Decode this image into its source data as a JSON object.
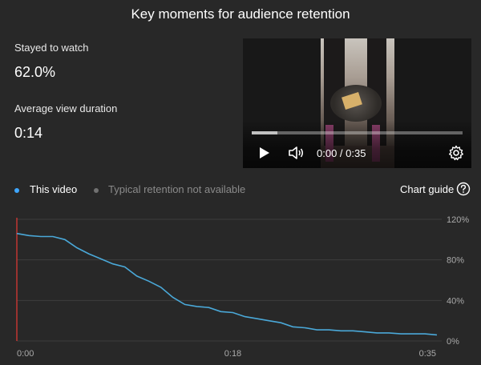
{
  "title": "Key moments for audience retention",
  "stats": {
    "stayed_label": "Stayed to watch",
    "stayed_value": "62.0%",
    "avg_label": "Average view duration",
    "avg_value": "0:14"
  },
  "player": {
    "time_display": "0:00 / 0:35",
    "buffered_fraction": 0.12,
    "play_icon": "play-icon",
    "volume_icon": "volume-icon",
    "settings_icon": "gear-icon"
  },
  "legend": {
    "this_video": "This video",
    "typical": "Typical retention not available",
    "this_video_color": "#3ea6ff",
    "typical_color": "#717171"
  },
  "chart_guide": "Chart guide",
  "help_icon": "help-circle-icon",
  "chart_data": {
    "type": "line",
    "xlabel": "",
    "ylabel": "",
    "x_tick_labels": [
      "0:00",
      "0:18",
      "0:35"
    ],
    "y_tick_labels": [
      "0%",
      "40%",
      "80%",
      "120%"
    ],
    "ylim": [
      0,
      120
    ],
    "xlim": [
      0,
      35
    ],
    "grid": true,
    "line_color": "#4aa8d8",
    "marker_color": "#e53935",
    "series": [
      {
        "x": [
          0,
          1,
          2,
          3,
          4,
          5,
          6,
          7,
          8,
          9,
          10,
          11,
          12,
          13,
          14,
          15,
          16,
          17,
          18,
          19,
          20,
          21,
          22,
          23,
          24,
          25,
          26,
          27,
          28,
          29,
          30,
          31,
          32,
          33,
          34,
          35
        ],
        "values": [
          106,
          104,
          103,
          103,
          100,
          92,
          86,
          81,
          76,
          73,
          64,
          59,
          53,
          43,
          36,
          34,
          33,
          29,
          28,
          24,
          22,
          20,
          18,
          14,
          13,
          11,
          11,
          10,
          10,
          9,
          8,
          8,
          7,
          7,
          7,
          6
        ]
      }
    ]
  }
}
